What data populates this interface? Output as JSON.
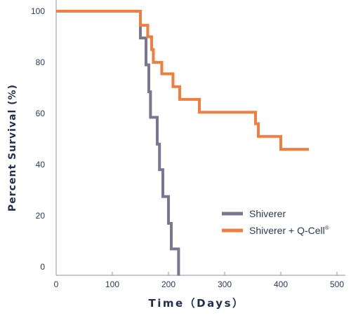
{
  "chart_data": {
    "type": "line",
    "title": "",
    "xlabel": "Time（Days）",
    "ylabel": "Percent Survival (%)",
    "xlim": [
      0,
      500
    ],
    "ylim": [
      -3.5,
      104
    ],
    "xticks": [
      0,
      100,
      200,
      300,
      400,
      500
    ],
    "yticks": [
      0,
      20,
      40,
      60,
      80,
      100
    ],
    "grid": false,
    "step": true,
    "legend_position": "lower-right",
    "series": [
      {
        "name": "Shiverer",
        "color": "#7a7791",
        "x": [
          0,
          150,
          150,
          160,
          160,
          165,
          165,
          168,
          168,
          180,
          180,
          184,
          184,
          190,
          190,
          200,
          200,
          205,
          205,
          218,
          218
        ],
        "y": [
          100,
          100,
          89.5,
          89.5,
          79,
          79,
          68.5,
          68.5,
          58.5,
          58.5,
          48,
          48,
          38,
          38,
          27.5,
          27.5,
          17,
          17,
          7,
          7,
          -3.5
        ]
      },
      {
        "name": "Shiverer + Q-Cell",
        "name_sup": "®",
        "color": "#ef7f41",
        "x": [
          0,
          150,
          150,
          163,
          163,
          170,
          170,
          173,
          173,
          188,
          188,
          208,
          208,
          220,
          220,
          255,
          255,
          355,
          355,
          360,
          360,
          400,
          400,
          450
        ],
        "y": [
          100,
          100,
          94.5,
          94.5,
          90,
          90,
          85,
          85,
          80,
          80,
          75.5,
          75.5,
          70.5,
          70.5,
          65.5,
          65.5,
          60.5,
          60.5,
          56,
          56,
          51,
          51,
          46,
          46
        ]
      }
    ]
  }
}
